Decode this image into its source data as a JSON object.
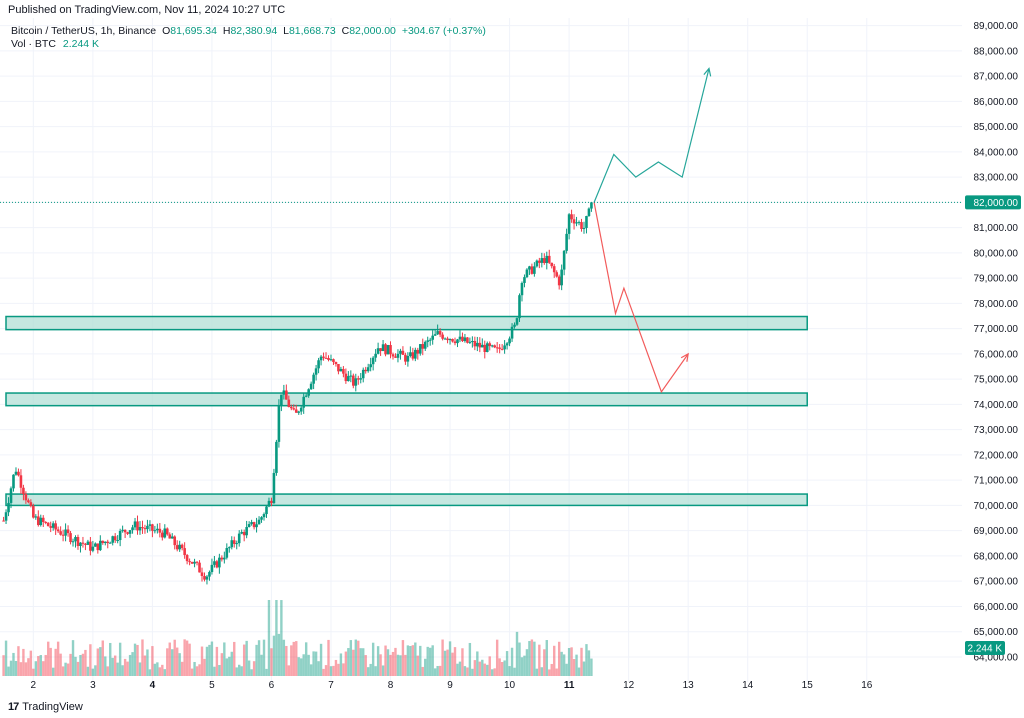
{
  "header": {
    "published": "Published on TradingView.com, Nov 11, 2024 10:27 UTC"
  },
  "legend": {
    "symbol": "Bitcoin / TetherUS, 1h, Binance",
    "o_label": "O",
    "o_value": "81,695.34",
    "h_label": "H",
    "h_value": "82,380.94",
    "l_label": "L",
    "l_value": "81,668.73",
    "c_label": "C",
    "c_value": "82,000.00",
    "change": "+304.67 (+0.37%)",
    "vol_label": "Vol · BTC",
    "vol_value": "2.244 K"
  },
  "footer": {
    "logo": "17",
    "brand": "TradingView"
  },
  "colors": {
    "up": "#089981",
    "down": "#f23645",
    "zone_fill": "#b2dfd6",
    "zone_stroke": "#089981",
    "bull_path": "#26a69a",
    "bear_path": "#f25b5b",
    "grid": "#f0f3fa"
  },
  "chart_data": {
    "type": "candlestick",
    "y_axis": {
      "range": [
        63800,
        89300
      ],
      "ticks": [
        "89,000.00",
        "88,000.00",
        "87,000.00",
        "86,000.00",
        "85,000.00",
        "84,000.00",
        "83,000.00",
        "82,000.00",
        "81,000.00",
        "80,000.00",
        "79,000.00",
        "78,000.00",
        "77,000.00",
        "76,000.00",
        "75,000.00",
        "74,000.00",
        "73,000.00",
        "72,000.00",
        "71,000.00",
        "70,000.00",
        "69,000.00",
        "68,000.00",
        "67,000.00",
        "66,000.00",
        "65,000.00",
        "64,000.00"
      ],
      "tick_values": [
        89000,
        88000,
        87000,
        86000,
        85000,
        84000,
        83000,
        82000,
        81000,
        80000,
        79000,
        78000,
        77000,
        76000,
        75000,
        74000,
        73000,
        72000,
        71000,
        70000,
        69000,
        68000,
        67000,
        66000,
        65000,
        64000
      ]
    },
    "x_axis": {
      "range": [
        1.44,
        17.6
      ],
      "ticks": [
        "2",
        "3",
        "4",
        "5",
        "6",
        "7",
        "8",
        "9",
        "10",
        "11",
        "12",
        "13",
        "14",
        "15",
        "16"
      ],
      "tick_values": [
        2,
        3,
        4,
        5,
        6,
        7,
        8,
        9,
        10,
        11,
        12,
        13,
        14,
        15,
        16
      ],
      "bold_ticks": [
        "4",
        "11"
      ]
    },
    "price_label": "82,000.00",
    "price_value": 82000,
    "volume_label": "2.244 K",
    "key_points": [
      {
        "day": 1.5,
        "price": 69400
      },
      {
        "day": 1.7,
        "price": 71500
      },
      {
        "day": 2.0,
        "price": 69500
      },
      {
        "day": 3.0,
        "price": 68300
      },
      {
        "day": 3.7,
        "price": 69200
      },
      {
        "day": 4.2,
        "price": 68900
      },
      {
        "day": 4.9,
        "price": 67200
      },
      {
        "day": 5.5,
        "price": 68900
      },
      {
        "day": 5.8,
        "price": 69400
      },
      {
        "day": 6.0,
        "price": 70300
      },
      {
        "day": 6.15,
        "price": 74600
      },
      {
        "day": 6.4,
        "price": 73500
      },
      {
        "day": 6.85,
        "price": 76000
      },
      {
        "day": 7.4,
        "price": 74800
      },
      {
        "day": 7.8,
        "price": 76300
      },
      {
        "day": 8.3,
        "price": 75800
      },
      {
        "day": 8.8,
        "price": 76800
      },
      {
        "day": 9.5,
        "price": 76300
      },
      {
        "day": 9.8,
        "price": 76100
      },
      {
        "day": 10.1,
        "price": 77100
      },
      {
        "day": 10.2,
        "price": 79000
      },
      {
        "day": 10.6,
        "price": 79800
      },
      {
        "day": 10.85,
        "price": 78800
      },
      {
        "day": 11.0,
        "price": 81500
      },
      {
        "day": 11.25,
        "price": 81000
      },
      {
        "day": 11.4,
        "price": 82000
      }
    ],
    "volume_max": 3.5,
    "zones": [
      {
        "low": 76960,
        "high": 77480,
        "x_end": 15.0
      },
      {
        "low": 73950,
        "high": 74450,
        "x_end": 15.0
      },
      {
        "low": 70000,
        "high": 70450,
        "x_end": 15.0
      }
    ],
    "projection_up": [
      {
        "day": 11.42,
        "price": 82000
      },
      {
        "day": 11.75,
        "price": 83900
      },
      {
        "day": 12.12,
        "price": 83000
      },
      {
        "day": 12.5,
        "price": 83600
      },
      {
        "day": 12.9,
        "price": 83000
      },
      {
        "day": 13.35,
        "price": 87300
      }
    ],
    "projection_down": [
      {
        "day": 11.42,
        "price": 82000
      },
      {
        "day": 11.78,
        "price": 77600
      },
      {
        "day": 11.92,
        "price": 78600
      },
      {
        "day": 12.55,
        "price": 74500
      },
      {
        "day": 13.0,
        "price": 76000
      }
    ]
  }
}
